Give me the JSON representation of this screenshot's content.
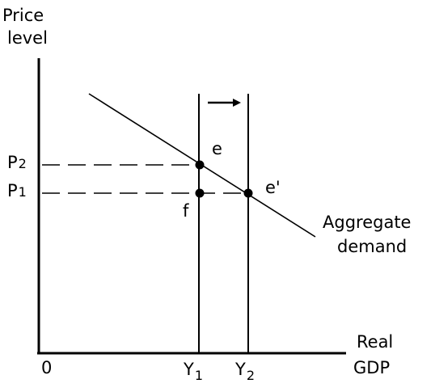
{
  "axes": {
    "y_label_line1": "Price",
    "y_label_line2": "level",
    "x_label_line1": "Real",
    "x_label_line2": "GDP",
    "origin": "0"
  },
  "ticks": {
    "p2_letter": "P",
    "p2_sub": "2",
    "p1_letter": "P",
    "p1_sub": "1",
    "y1_letter": "Y",
    "y1_sub": "1",
    "y2_letter": "Y",
    "y2_sub": "2"
  },
  "points": {
    "e": "e",
    "e_prime": "e'",
    "f": "f"
  },
  "curve_label": {
    "line1": "Aggregate",
    "line2": "demand"
  }
}
